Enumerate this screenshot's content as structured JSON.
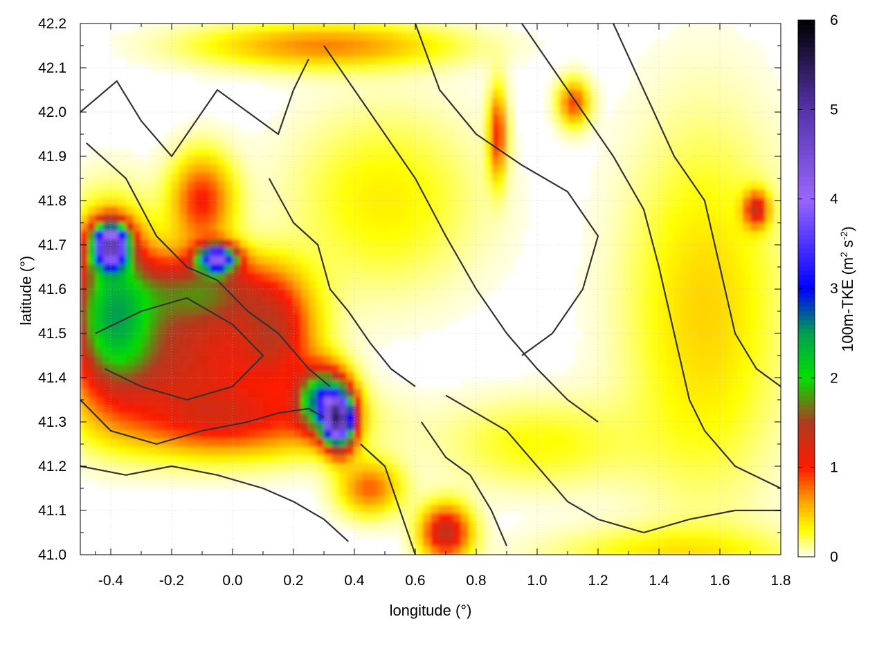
{
  "chart_data": {
    "type": "heatmap",
    "title": "",
    "xlabel": "longitude (°)",
    "ylabel": "latitude (°)",
    "colorbar_label": "100m-TKE (m² s⁻²)",
    "colorbar_label_parts": {
      "main": "100m-TKE (m",
      "exp1": "2",
      "mid": " s",
      "exp2": "-2",
      "end": ")"
    },
    "xlim": [
      -0.5,
      1.8
    ],
    "ylim": [
      41.0,
      42.2
    ],
    "clim": [
      0,
      6
    ],
    "x_ticks": [
      -0.4,
      -0.2,
      0.0,
      0.2,
      0.4,
      0.6,
      0.8,
      1.0,
      1.2,
      1.4,
      1.6,
      1.8
    ],
    "x_tick_labels": [
      "-0.4",
      "-0.2",
      "0.0",
      "0.2",
      "0.4",
      "0.6",
      "0.8",
      "1.0",
      "1.2",
      "1.4",
      "1.6",
      "1.8"
    ],
    "y_ticks": [
      41.0,
      41.1,
      41.2,
      41.3,
      41.4,
      41.5,
      41.6,
      41.7,
      41.8,
      41.9,
      42.0,
      42.1,
      42.2
    ],
    "y_tick_labels": [
      "41.0",
      "41.1",
      "41.2",
      "41.3",
      "41.4",
      "41.5",
      "41.6",
      "41.7",
      "41.8",
      "41.9",
      "42.0",
      "42.1",
      "42.2"
    ],
    "colorbar_ticks": [
      0,
      1,
      2,
      3,
      4,
      5,
      6
    ],
    "colorbar_tick_labels": [
      "0",
      "1",
      "2",
      "3",
      "4",
      "5",
      "6"
    ],
    "colormap_stops": [
      {
        "v": 0.0,
        "color": "#ffffff"
      },
      {
        "v": 0.3,
        "color": "#ffff00"
      },
      {
        "v": 0.6,
        "color": "#ffaa00"
      },
      {
        "v": 1.0,
        "color": "#ff1a00"
      },
      {
        "v": 1.5,
        "color": "#b03a20"
      },
      {
        "v": 2.0,
        "color": "#00e000"
      },
      {
        "v": 2.5,
        "color": "#00a050"
      },
      {
        "v": 3.0,
        "color": "#0000ff"
      },
      {
        "v": 4.0,
        "color": "#9966ff"
      },
      {
        "v": 5.0,
        "color": "#5533aa"
      },
      {
        "v": 6.0,
        "color": "#000000"
      }
    ],
    "grid": true,
    "contour_color": "#333333",
    "field_blobs": [
      {
        "lon": -0.4,
        "lat": 41.55,
        "rlon": 0.14,
        "rlat": 0.18,
        "v": 2.0
      },
      {
        "lon": -0.4,
        "lat": 41.7,
        "rlon": 0.06,
        "rlat": 0.05,
        "v": 4.0
      },
      {
        "lon": -0.15,
        "lat": 41.45,
        "rlon": 0.28,
        "rlat": 0.14,
        "v": 1.2
      },
      {
        "lon": -0.1,
        "lat": 41.6,
        "rlon": 0.22,
        "rlat": 0.08,
        "v": 1.3
      },
      {
        "lon": -0.05,
        "lat": 41.67,
        "rlon": 0.06,
        "rlat": 0.03,
        "v": 3.5
      },
      {
        "lon": -0.1,
        "lat": 41.8,
        "rlon": 0.1,
        "rlat": 0.1,
        "v": 1.0
      },
      {
        "lon": 0.15,
        "lat": 41.5,
        "rlon": 0.12,
        "rlat": 0.12,
        "v": 1.0
      },
      {
        "lon": 0.3,
        "lat": 41.35,
        "rlon": 0.08,
        "rlat": 0.07,
        "v": 2.5
      },
      {
        "lon": 0.35,
        "lat": 41.3,
        "rlon": 0.05,
        "rlat": 0.06,
        "v": 4.0
      },
      {
        "lon": 0.0,
        "lat": 41.3,
        "rlon": 0.35,
        "rlat": 0.08,
        "v": 0.9
      },
      {
        "lon": 0.7,
        "lat": 41.05,
        "rlon": 0.08,
        "rlat": 0.06,
        "v": 1.4
      },
      {
        "lon": 0.45,
        "lat": 41.15,
        "rlon": 0.1,
        "rlat": 0.06,
        "v": 0.8
      },
      {
        "lon": 0.87,
        "lat": 41.95,
        "rlon": 0.03,
        "rlat": 0.1,
        "v": 1.0
      },
      {
        "lon": 1.12,
        "lat": 42.02,
        "rlon": 0.05,
        "rlat": 0.05,
        "v": 0.9
      },
      {
        "lon": 1.55,
        "lat": 41.55,
        "rlon": 0.25,
        "rlat": 0.4,
        "v": 0.45
      },
      {
        "lon": 1.45,
        "lat": 41.0,
        "rlon": 0.4,
        "rlat": 0.06,
        "v": 0.35
      },
      {
        "lon": 0.5,
        "lat": 41.8,
        "rlon": 0.3,
        "rlat": 0.2,
        "v": 0.35
      },
      {
        "lon": 0.3,
        "lat": 42.15,
        "rlon": 0.4,
        "rlat": 0.05,
        "v": 0.7
      },
      {
        "lon": 1.0,
        "lat": 41.25,
        "rlon": 0.3,
        "rlat": 0.1,
        "v": 0.3
      },
      {
        "lon": 1.72,
        "lat": 41.78,
        "rlon": 0.04,
        "rlat": 0.04,
        "v": 1.2
      }
    ],
    "contours": [
      [
        [
          -0.5,
          42.0
        ],
        [
          -0.38,
          42.07
        ],
        [
          -0.3,
          41.98
        ],
        [
          -0.2,
          41.9
        ],
        [
          -0.12,
          41.98
        ],
        [
          -0.05,
          42.05
        ],
        [
          0.05,
          42.0
        ],
        [
          0.15,
          41.95
        ],
        [
          0.2,
          42.05
        ],
        [
          0.25,
          42.12
        ]
      ],
      [
        [
          -0.48,
          41.93
        ],
        [
          -0.35,
          41.85
        ],
        [
          -0.25,
          41.72
        ],
        [
          -0.15,
          41.65
        ],
        [
          -0.05,
          41.62
        ],
        [
          0.05,
          41.55
        ],
        [
          0.15,
          41.5
        ],
        [
          0.25,
          41.42
        ],
        [
          0.32,
          41.38
        ]
      ],
      [
        [
          -0.5,
          41.35
        ],
        [
          -0.4,
          41.28
        ],
        [
          -0.25,
          41.25
        ],
        [
          -0.1,
          41.28
        ],
        [
          0.05,
          41.3
        ],
        [
          0.15,
          41.32
        ],
        [
          0.25,
          41.33
        ],
        [
          0.3,
          41.31
        ]
      ],
      [
        [
          -0.5,
          41.2
        ],
        [
          -0.35,
          41.18
        ],
        [
          -0.2,
          41.2
        ],
        [
          -0.05,
          41.18
        ],
        [
          0.1,
          41.15
        ],
        [
          0.2,
          41.12
        ],
        [
          0.3,
          41.08
        ],
        [
          0.38,
          41.03
        ]
      ],
      [
        [
          0.42,
          41.25
        ],
        [
          0.5,
          41.2
        ],
        [
          0.55,
          41.1
        ],
        [
          0.6,
          41.0
        ]
      ],
      [
        [
          0.3,
          42.15
        ],
        [
          0.4,
          42.05
        ],
        [
          0.5,
          41.95
        ],
        [
          0.6,
          41.85
        ],
        [
          0.7,
          41.72
        ],
        [
          0.8,
          41.6
        ],
        [
          0.9,
          41.5
        ],
        [
          1.0,
          41.42
        ],
        [
          1.1,
          41.35
        ],
        [
          1.2,
          41.3
        ]
      ],
      [
        [
          0.6,
          42.2
        ],
        [
          0.68,
          42.05
        ],
        [
          0.8,
          41.95
        ],
        [
          0.95,
          41.88
        ],
        [
          1.1,
          41.82
        ],
        [
          1.2,
          41.72
        ],
        [
          1.15,
          41.6
        ],
        [
          1.05,
          41.5
        ],
        [
          0.95,
          41.45
        ]
      ],
      [
        [
          0.95,
          42.2
        ],
        [
          1.05,
          42.1
        ],
        [
          1.15,
          42.0
        ],
        [
          1.25,
          41.9
        ],
        [
          1.35,
          41.78
        ],
        [
          1.4,
          41.65
        ],
        [
          1.45,
          41.5
        ],
        [
          1.5,
          41.35
        ],
        [
          1.55,
          41.28
        ],
        [
          1.65,
          41.2
        ],
        [
          1.8,
          41.15
        ]
      ],
      [
        [
          1.25,
          42.2
        ],
        [
          1.35,
          42.05
        ],
        [
          1.45,
          41.9
        ],
        [
          1.55,
          41.8
        ],
        [
          1.6,
          41.65
        ],
        [
          1.65,
          41.5
        ],
        [
          1.72,
          41.42
        ],
        [
          1.8,
          41.38
        ]
      ],
      [
        [
          0.62,
          41.3
        ],
        [
          0.7,
          41.22
        ],
        [
          0.78,
          41.18
        ],
        [
          0.85,
          41.1
        ],
        [
          0.9,
          41.02
        ]
      ],
      [
        [
          0.7,
          41.36
        ],
        [
          0.8,
          41.32
        ],
        [
          0.9,
          41.28
        ],
        [
          1.0,
          41.2
        ],
        [
          1.1,
          41.12
        ],
        [
          1.2,
          41.08
        ],
        [
          1.35,
          41.05
        ],
        [
          1.5,
          41.08
        ],
        [
          1.65,
          41.1
        ],
        [
          1.8,
          41.1
        ]
      ],
      [
        [
          -0.45,
          41.5
        ],
        [
          -0.3,
          41.55
        ],
        [
          -0.15,
          41.58
        ],
        [
          0.0,
          41.52
        ],
        [
          0.1,
          41.45
        ],
        [
          0.0,
          41.38
        ],
        [
          -0.15,
          41.35
        ],
        [
          -0.3,
          41.38
        ],
        [
          -0.42,
          41.42
        ]
      ],
      [
        [
          0.12,
          41.85
        ],
        [
          0.2,
          41.75
        ],
        [
          0.28,
          41.7
        ],
        [
          0.32,
          41.6
        ],
        [
          0.38,
          41.55
        ],
        [
          0.45,
          41.48
        ],
        [
          0.52,
          41.42
        ],
        [
          0.6,
          41.38
        ]
      ]
    ]
  }
}
